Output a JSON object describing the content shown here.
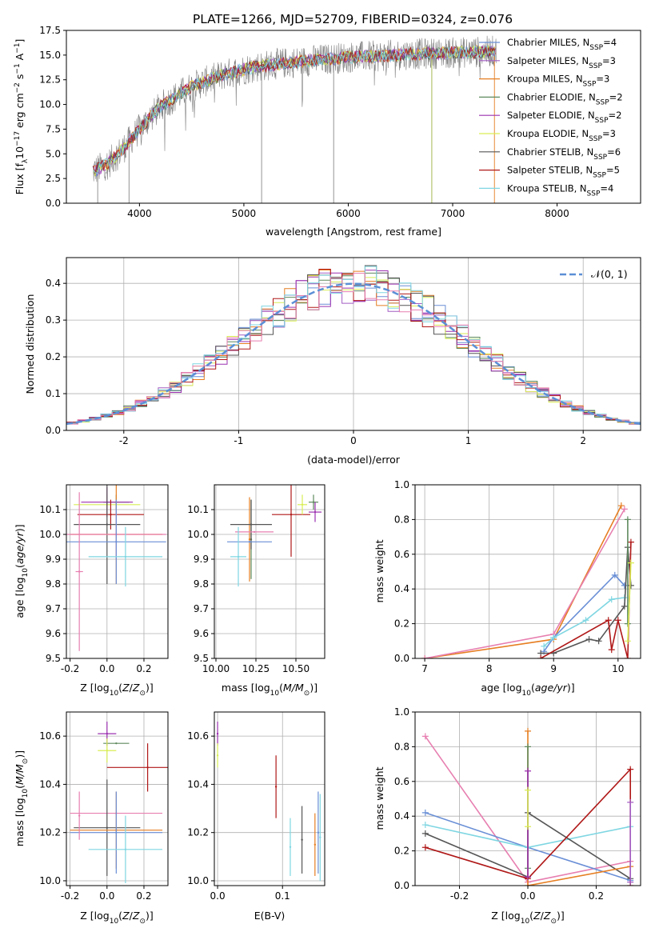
{
  "figure_title": "PLATE=1266, MJD=52709, FIBERID=0324, z=0.076",
  "colors": {
    "chabrier_miles": "#6a8fd6",
    "salpeter_miles": "#a45ec4",
    "kroupa_miles": "#e67e22",
    "chabrier_elodie": "#5e8a5e",
    "salpeter_elodie": "#9b30b0",
    "kroupa_elodie": "#d9ee55",
    "chabrier_stelib": "#555555",
    "salpeter_stelib": "#b01818",
    "kroupa_stelib": "#7fd6e2",
    "pink": "#e77fb0",
    "data_grey": "#808080",
    "gauss": "#5b8fd6"
  },
  "chart_data": [
    {
      "id": "spectrum",
      "type": "line",
      "title": "PLATE=1266, MJD=52709, FIBERID=0324, z=0.076",
      "xlabel": "wavelength [Angstrom, rest frame]",
      "ylabel": "Flux [f",
      "xlim": [
        3300,
        8800
      ],
      "ylim": [
        0,
        17.5
      ],
      "xticks": [
        4000,
        5000,
        6000,
        7000,
        8000
      ],
      "yticks": [
        0.0,
        2.5,
        5.0,
        7.5,
        10.0,
        12.5,
        15.0,
        17.5
      ],
      "grid": false,
      "legend_position": "upper-right",
      "continuum": {
        "x": [
          3550,
          3700,
          3850,
          4000,
          4200,
          4500,
          4800,
          5100,
          5400,
          5700,
          6000,
          6300,
          6600,
          6900,
          7200,
          7400
        ],
        "y": [
          3.2,
          4.0,
          5.6,
          7.5,
          9.8,
          11.8,
          13.0,
          13.8,
          14.2,
          14.5,
          14.8,
          14.9,
          15.1,
          15.2,
          15.3,
          15.4
        ]
      },
      "absorption_lines": [
        3600,
        3900,
        5170,
        5860,
        6800,
        7400
      ],
      "series": [
        {
          "name": "Chabrier MILES, N",
          "sub": "SSP",
          "suffix": "=4",
          "color": "#6a8fd6"
        },
        {
          "name": "Salpeter MILES, N",
          "sub": "SSP",
          "suffix": "=3",
          "color": "#a45ec4"
        },
        {
          "name": "Kroupa MILES, N",
          "sub": "SSP",
          "suffix": "=3",
          "color": "#e67e22"
        },
        {
          "name": "Chabrier ELODIE, N",
          "sub": "SSP",
          "suffix": "=2",
          "color": "#5e8a5e"
        },
        {
          "name": "Salpeter ELODIE, N",
          "sub": "SSP",
          "suffix": "=2",
          "color": "#9b30b0"
        },
        {
          "name": "Kroupa ELODIE, N",
          "sub": "SSP",
          "suffix": "=3",
          "color": "#d9ee55"
        },
        {
          "name": "Chabrier STELIB, N",
          "sub": "SSP",
          "suffix": "=6",
          "color": "#555555"
        },
        {
          "name": "Salpeter STELIB, N",
          "sub": "SSP",
          "suffix": "=5",
          "color": "#b01818"
        },
        {
          "name": "Kroupa STELIB, N",
          "sub": "SSP",
          "suffix": "=4",
          "color": "#7fd6e2"
        }
      ]
    },
    {
      "id": "residuals",
      "type": "bar",
      "xlabel": "(data-model)/error",
      "ylabel": "Normed distribution",
      "xlim": [
        -2.5,
        2.5
      ],
      "ylim": [
        0,
        0.47
      ],
      "xticks": [
        -2,
        -1,
        0,
        1,
        2
      ],
      "yticks": [
        0.0,
        0.1,
        0.2,
        0.3,
        0.4
      ],
      "grid": true,
      "legend_position": "upper-right",
      "legend_label": "𝒩(0, 1)",
      "bin_width": 0.1,
      "series_colors": [
        "#6a8fd6",
        "#a45ec4",
        "#e67e22",
        "#5e8a5e",
        "#9b30b0",
        "#d9ee55",
        "#555555",
        "#b01818",
        "#7fd6e2",
        "#e77fb0"
      ]
    },
    {
      "id": "age_vs_Z",
      "type": "scatter",
      "xlabel": "Z [log",
      "ylabel": "age  [log",
      "xlim": [
        -0.22,
        0.33
      ],
      "ylim": [
        9.5,
        10.2
      ],
      "xticks": [
        -0.2,
        0.0,
        0.2
      ],
      "yticks": [
        9.5,
        9.6,
        9.7,
        9.8,
        9.9,
        10.0,
        10.1
      ],
      "points": [
        {
          "x": 0.0,
          "xerr": 0.18,
          "y": 10.12,
          "yerr": 0.04,
          "color": "#d9ee55"
        },
        {
          "x": 0.05,
          "xerr": 0.07,
          "y": 10.13,
          "yerr": 0.03,
          "color": "#5e8a5e"
        },
        {
          "x": 0.0,
          "xerr": 0.14,
          "y": 10.13,
          "yerr": 0.06,
          "color": "#9b30b0"
        },
        {
          "x": 0.02,
          "xerr": 0.18,
          "y": 10.08,
          "yerr": 0.06,
          "color": "#b01818"
        },
        {
          "x": 0.0,
          "xerr": 0.18,
          "y": 10.04,
          "yerr": 0.24,
          "color": "#555555"
        },
        {
          "x": 0.05,
          "xerr": 0.25,
          "y": 10.0,
          "yerr": 0.2,
          "color": "#e67e22"
        },
        {
          "x": 0.05,
          "xerr": 0.27,
          "y": 10.0,
          "yerr": 0.1,
          "color": "#e77fb0"
        },
        {
          "x": 0.05,
          "xerr": 0.27,
          "y": 9.97,
          "yerr": 0.17,
          "color": "#6a8fd6"
        },
        {
          "x": 0.1,
          "xerr": 0.2,
          "y": 9.91,
          "yerr": 0.12,
          "color": "#7fd6e2"
        },
        {
          "x": -0.15,
          "xerr": 0.02,
          "y": 9.85,
          "yerr": 0.32,
          "color": "#e77fb0"
        }
      ]
    },
    {
      "id": "age_vs_mass",
      "type": "scatter",
      "xlabel": "mass [log",
      "ylabel": "",
      "xlim": [
        9.99,
        10.68
      ],
      "ylim": [
        9.5,
        10.2
      ],
      "xticks": [
        10.0,
        10.25,
        10.5
      ],
      "yticks": [
        9.5,
        9.6,
        9.7,
        9.8,
        9.9,
        10.0,
        10.1
      ],
      "points": [
        {
          "x": 10.21,
          "xerr": 0.0,
          "y": 9.98,
          "yerr": 0.17,
          "color": "#e67e22"
        },
        {
          "x": 10.22,
          "xerr": 0.0,
          "y": 9.98,
          "yerr": 0.16,
          "color": "#5e8a5e"
        },
        {
          "x": 10.22,
          "xerr": 0.13,
          "y": 10.04,
          "yerr": 0.1,
          "color": "#555555"
        },
        {
          "x": 10.24,
          "xerr": 0.12,
          "y": 10.01,
          "yerr": 0.0,
          "color": "#e77fb0"
        },
        {
          "x": 10.21,
          "xerr": 0.14,
          "y": 9.97,
          "yerr": 0.0,
          "color": "#6a8fd6"
        },
        {
          "x": 10.14,
          "xerr": 0.05,
          "y": 9.91,
          "yerr": 0.12,
          "color": "#7fd6e2"
        },
        {
          "x": 10.47,
          "xerr": 0.12,
          "y": 10.08,
          "yerr": 0.17,
          "color": "#b01818"
        },
        {
          "x": 10.54,
          "xerr": 0.03,
          "y": 10.12,
          "yerr": 0.04,
          "color": "#d9ee55"
        },
        {
          "x": 10.61,
          "xerr": 0.03,
          "y": 10.13,
          "yerr": 0.03,
          "color": "#5e8a5e"
        },
        {
          "x": 10.62,
          "xerr": 0.04,
          "y": 10.09,
          "yerr": 0.04,
          "color": "#9b30b0"
        }
      ]
    },
    {
      "id": "mass_weight_vs_age",
      "type": "line",
      "xlabel": "age  [log",
      "ylabel": "mass weight",
      "xlim": [
        6.85,
        10.35
      ],
      "ylim": [
        0,
        1.0
      ],
      "xticks": [
        7,
        8,
        9,
        10
      ],
      "yticks": [
        0.0,
        0.2,
        0.4,
        0.6,
        0.8,
        1.0
      ],
      "series": [
        {
          "color": "#e67e22",
          "x": [
            7.0,
            9.0,
            10.05
          ],
          "y": [
            0.0,
            0.11,
            0.88
          ]
        },
        {
          "color": "#e77fb0",
          "x": [
            7.0,
            9.0,
            10.1
          ],
          "y": [
            0.0,
            0.14,
            0.86
          ]
        },
        {
          "color": "#6a8fd6",
          "x": [
            8.85,
            9.0,
            9.95,
            10.1
          ],
          "y": [
            0.04,
            0.12,
            0.48,
            0.42
          ]
        },
        {
          "color": "#7fd6e2",
          "x": [
            8.85,
            9.0,
            9.5,
            9.9,
            10.1
          ],
          "y": [
            0.07,
            0.12,
            0.22,
            0.34,
            0.35
          ]
        },
        {
          "color": "#555555",
          "x": [
            8.8,
            9.0,
            9.55,
            9.7,
            10.1,
            10.15,
            10.2
          ],
          "y": [
            0.03,
            0.03,
            0.11,
            0.1,
            0.3,
            0.64,
            0.42
          ]
        },
        {
          "color": "#b01818",
          "x": [
            8.8,
            9.85,
            9.9,
            10.0,
            10.15,
            10.2
          ],
          "y": [
            0.0,
            0.22,
            0.05,
            0.22,
            0.0,
            0.67
          ]
        },
        {
          "color": "#5e8a5e",
          "x": [
            10.15,
            10.15
          ],
          "y": [
            0.2,
            0.8
          ]
        },
        {
          "color": "#d9ee55",
          "x": [
            10.15,
            10.2
          ],
          "y": [
            0.1,
            0.55
          ]
        }
      ]
    },
    {
      "id": "mass_vs_Z",
      "type": "scatter",
      "xlabel": "Z [log",
      "ylabel": "mass [log",
      "xlim": [
        -0.22,
        0.33
      ],
      "ylim": [
        9.98,
        10.7
      ],
      "xticks": [
        -0.2,
        0.0,
        0.2
      ],
      "yticks": [
        10.0,
        10.2,
        10.4,
        10.6
      ],
      "points": [
        {
          "x": 0.0,
          "xerr": 0.05,
          "y": 10.61,
          "yerr": 0.05,
          "color": "#9b30b0"
        },
        {
          "x": 0.05,
          "xerr": 0.07,
          "y": 10.57,
          "yerr": 0.0,
          "color": "#5e8a5e"
        },
        {
          "x": 0.0,
          "xerr": 0.05,
          "y": 10.54,
          "yerr": 0.05,
          "color": "#d9ee55"
        },
        {
          "x": 0.22,
          "xerr": 0.22,
          "y": 10.47,
          "yerr": 0.1,
          "color": "#b01818"
        },
        {
          "x": 0.05,
          "xerr": 0.25,
          "y": 10.28,
          "yerr": 0.0,
          "color": "#e77fb0"
        },
        {
          "x": 0.0,
          "xerr": 0.18,
          "y": 10.22,
          "yerr": 0.2,
          "color": "#555555"
        },
        {
          "x": 0.05,
          "xerr": 0.25,
          "y": 10.21,
          "yerr": 0.16,
          "color": "#e67e22"
        },
        {
          "x": 0.05,
          "xerr": 0.25,
          "y": 10.2,
          "yerr": 0.17,
          "color": "#6a8fd6"
        },
        {
          "x": 0.1,
          "xerr": 0.2,
          "y": 10.13,
          "yerr": 0.14,
          "color": "#7fd6e2"
        },
        {
          "x": -0.15,
          "xerr": 0.0,
          "y": 10.27,
          "yerr": 0.1,
          "color": "#e77fb0"
        }
      ]
    },
    {
      "id": "mass_vs_ebv",
      "type": "scatter",
      "xlabel": "E(B-V)",
      "ylabel": "",
      "xlim": [
        -0.005,
        0.165
      ],
      "ylim": [
        9.98,
        10.7
      ],
      "xticks": [
        0.0,
        0.1
      ],
      "yticks": [
        10.0,
        10.2,
        10.4,
        10.6
      ],
      "points": [
        {
          "x": 0.0,
          "xerr": 0.0,
          "y": 10.61,
          "yerr": 0.05,
          "color": "#9b30b0"
        },
        {
          "x": 0.0,
          "xerr": 0.0,
          "y": 10.52,
          "yerr": 0.05,
          "color": "#d9ee55"
        },
        {
          "x": 0.09,
          "xerr": 0.0,
          "y": 10.39,
          "yerr": 0.13,
          "color": "#b01818"
        },
        {
          "x": 0.112,
          "xerr": 0.0,
          "y": 10.14,
          "yerr": 0.12,
          "color": "#7fd6e2"
        },
        {
          "x": 0.13,
          "xerr": 0.0,
          "y": 10.17,
          "yerr": 0.14,
          "color": "#555555"
        },
        {
          "x": 0.15,
          "xerr": 0.0,
          "y": 10.15,
          "yerr": 0.13,
          "color": "#e67e22"
        },
        {
          "x": 0.155,
          "xerr": 0.0,
          "y": 10.2,
          "yerr": 0.17,
          "color": "#6a8fd6"
        },
        {
          "x": 0.158,
          "xerr": 0.0,
          "y": 10.18,
          "yerr": 0.18,
          "color": "#7fd6e2"
        }
      ]
    },
    {
      "id": "mass_weight_vs_Z",
      "type": "line",
      "xlabel": "Z [log",
      "ylabel": "mass weight",
      "xlim": [
        -0.33,
        0.33
      ],
      "ylim": [
        0,
        1.0
      ],
      "xticks": [
        -0.2,
        0.0,
        0.2
      ],
      "yticks": [
        0.0,
        0.2,
        0.4,
        0.6,
        0.8,
        1.0
      ],
      "series": [
        {
          "color": "#e77fb0",
          "x": [
            -0.3,
            0.0,
            0.3
          ],
          "y": [
            0.86,
            0.02,
            0.14
          ]
        },
        {
          "color": "#6a8fd6",
          "x": [
            -0.3,
            0.0,
            0.3
          ],
          "y": [
            0.42,
            0.22,
            0.03
          ]
        },
        {
          "color": "#7fd6e2",
          "x": [
            -0.3,
            0.0,
            0.3
          ],
          "y": [
            0.35,
            0.22,
            0.34
          ]
        },
        {
          "color": "#555555",
          "x": [
            -0.3,
            0.0,
            0.0,
            0.3
          ],
          "y": [
            0.3,
            0.05,
            0.42,
            0.04
          ]
        },
        {
          "color": "#b01818",
          "x": [
            -0.3,
            0.0,
            0.3,
            0.3
          ],
          "y": [
            0.22,
            0.04,
            0.67,
            0.0
          ]
        },
        {
          "color": "#e67e22",
          "x": [
            0.0,
            0.0,
            0.3
          ],
          "y": [
            0.89,
            0.0,
            0.11
          ]
        },
        {
          "color": "#5e8a5e",
          "x": [
            0.0,
            0.0
          ],
          "y": [
            0.8,
            0.1
          ]
        },
        {
          "color": "#9b30b0",
          "x": [
            0.0,
            0.0
          ],
          "y": [
            0.66,
            0.05
          ]
        },
        {
          "color": "#d9ee55",
          "x": [
            0.0,
            0.0
          ],
          "y": [
            0.55,
            0.34
          ]
        },
        {
          "color": "#a45ec4",
          "x": [
            0.3,
            0.3
          ],
          "y": [
            0.48,
            0.02
          ]
        }
      ]
    }
  ]
}
